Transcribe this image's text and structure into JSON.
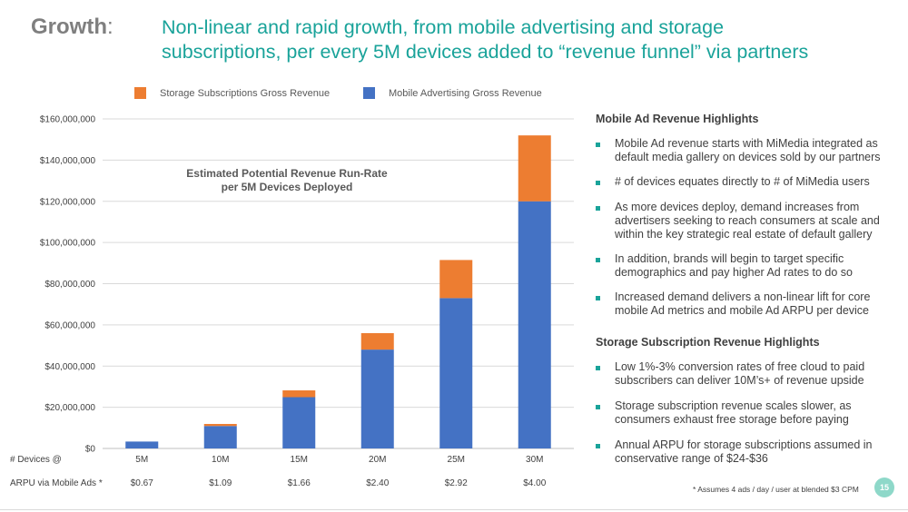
{
  "header": {
    "label": "Growth",
    "colon": ":",
    "title_line1": "Non-linear and rapid growth, from mobile advertising and storage",
    "title_line2": "subscriptions, per every 5M devices added to “revenue funnel” via partners"
  },
  "colors": {
    "teal": "#1aa39a",
    "storage": "#ed7d31",
    "mobile": "#4472c4"
  },
  "chart_data": {
    "type": "bar",
    "stacked": true,
    "title": "Estimated Potential Revenue Run-Rate\nper 5M Devices Deployed",
    "categories": [
      "5M",
      "10M",
      "15M",
      "20M",
      "25M",
      "30M"
    ],
    "series": [
      {
        "name": "Mobile Advertising Gross Revenue",
        "color": "#4472c4",
        "values": [
          3350000,
          10900000,
          24900000,
          48000000,
          73000000,
          120000000
        ]
      },
      {
        "name": "Storage Subscriptions Gross Revenue",
        "color": "#ed7d31",
        "values": [
          0,
          1000000,
          3300000,
          8000000,
          18500000,
          32000000
        ]
      }
    ],
    "legend_order": [
      "Storage Subscriptions Gross Revenue",
      "Mobile Advertising Gross Revenue"
    ],
    "legend_position": "top",
    "ylim": [
      0,
      160000000
    ],
    "yticks": [
      "$0",
      "$20,000,000",
      "$40,000,000",
      "$60,000,000",
      "$80,000,000",
      "$100,000,000",
      "$120,000,000",
      "$140,000,000",
      "$160,000,000"
    ],
    "grid": true,
    "row_labels": {
      "devices": "# Devices @",
      "arpu": "ARPU via Mobile Ads *"
    },
    "arpu": [
      "$0.67",
      "$1.09",
      "$1.66",
      "$2.40",
      "$2.92",
      "$4.00"
    ]
  },
  "sidebar": {
    "mobile_heading": "Mobile Ad Revenue Highlights",
    "mobile_bullets": [
      "Mobile Ad revenue starts with MiMedia integrated as default media gallery on devices sold by our partners",
      "# of devices equates directly to # of MiMedia users",
      "As more devices deploy, demand increases from advertisers seeking to reach consumers at scale and within the key strategic real estate of default gallery",
      "In addition, brands will begin to target specific demographics and pay higher Ad rates to do so",
      "Increased demand delivers a non-linear lift for core mobile Ad metrics and mobile Ad ARPU per device"
    ],
    "storage_heading": "Storage Subscription Revenue Highlights",
    "storage_bullets": [
      "Low 1%-3% conversion rates of free cloud to paid subscribers can deliver 10M’s+ of revenue upside",
      "Storage subscription revenue scales slower, as consumers exhaust free storage before paying",
      "Annual ARPU for storage subscriptions assumed in conservative range of $24-$36"
    ]
  },
  "footnote": "* Assumes 4 ads / day / user at blended $3 CPM",
  "page_number": "15"
}
